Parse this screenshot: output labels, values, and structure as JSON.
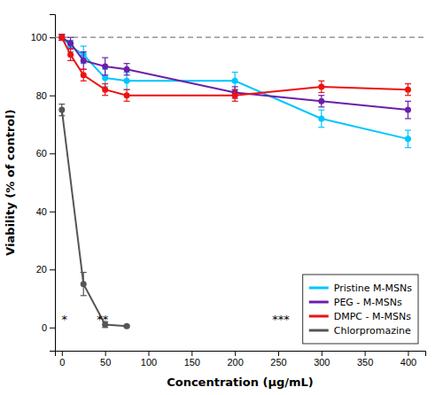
{
  "chart_data": {
    "type": "line",
    "xlabel": "Concentration (µg/mL)",
    "ylabel": "Viability (% of control)",
    "xlim": [
      -8,
      420
    ],
    "ylim": [
      -8,
      108
    ],
    "xticks": [
      0,
      50,
      100,
      150,
      200,
      250,
      300,
      350,
      400
    ],
    "yticks": [
      0,
      20,
      40,
      60,
      80,
      100
    ],
    "grid": false,
    "legend": "lower right",
    "marker": "circle",
    "line_style": "solid",
    "series": [
      {
        "name": "Pristine M-MSNs",
        "color": "#00C5FF",
        "x": [
          0,
          10,
          25,
          50,
          75,
          200,
          300,
          400
        ],
        "values": [
          100,
          97,
          94,
          86,
          85,
          85,
          72,
          65
        ],
        "errors": [
          1,
          2,
          3,
          3,
          3,
          3,
          3,
          3
        ]
      },
      {
        "name": "PEG - M-MSNs",
        "color": "#6B1FA8",
        "x": [
          0,
          10,
          25,
          50,
          75,
          200,
          300,
          400
        ],
        "values": [
          100,
          98,
          92,
          90,
          89,
          81,
          78,
          75
        ],
        "errors": [
          1,
          2,
          3,
          3,
          2,
          2,
          2,
          3
        ]
      },
      {
        "name": "DMPC - M-MSNs",
        "color": "#EE1111",
        "x": [
          0,
          10,
          25,
          50,
          75,
          200,
          300,
          400
        ],
        "values": [
          100,
          94,
          87,
          82,
          80,
          80,
          83,
          82
        ],
        "errors": [
          1,
          2,
          2,
          2,
          2,
          2,
          2,
          2
        ]
      },
      {
        "name": "Chlorpromazine",
        "color": "#555555",
        "x": [
          0,
          25,
          50,
          75
        ],
        "values": [
          75,
          15,
          1,
          0.5
        ],
        "errors": [
          2,
          4,
          1,
          0.3
        ]
      }
    ],
    "reference_lines": [
      {
        "y": 100,
        "line_style": "dashed",
        "color": "#808080"
      }
    ],
    "annotations": [
      {
        "x": 3,
        "y": 1.5,
        "text": "*"
      },
      {
        "x": 47,
        "y": 1.5,
        "text": "**"
      },
      {
        "x": 253,
        "y": 1.5,
        "text": "***"
      }
    ]
  }
}
